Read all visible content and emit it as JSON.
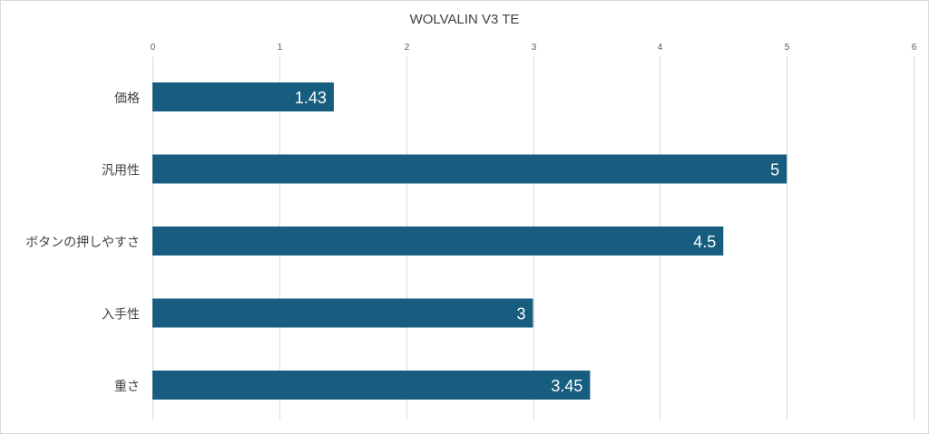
{
  "chart_data": {
    "type": "bar",
    "orientation": "horizontal",
    "title": "WOLVALIN V3 TE",
    "xlabel": "",
    "ylabel": "",
    "categories": [
      "価格",
      "汎用性",
      "ボタンの押しやすさ",
      "入手性",
      "重さ"
    ],
    "values": [
      1.43,
      5,
      4.5,
      3,
      3.45
    ],
    "value_labels": [
      "1.43",
      "5",
      "4.5",
      "3",
      "3.45"
    ],
    "xlim": [
      0,
      6
    ],
    "ticks": [
      0,
      1,
      2,
      3,
      4,
      5,
      6
    ],
    "tick_labels": [
      "0",
      "1",
      "2",
      "3",
      "4",
      "5",
      "6"
    ],
    "axis_position": "top",
    "grid": true,
    "legend": "none",
    "colors": {
      "bar": "#175d7f",
      "grid": "#d9d9d9",
      "text": "#404040",
      "label": "#ffffff"
    }
  }
}
